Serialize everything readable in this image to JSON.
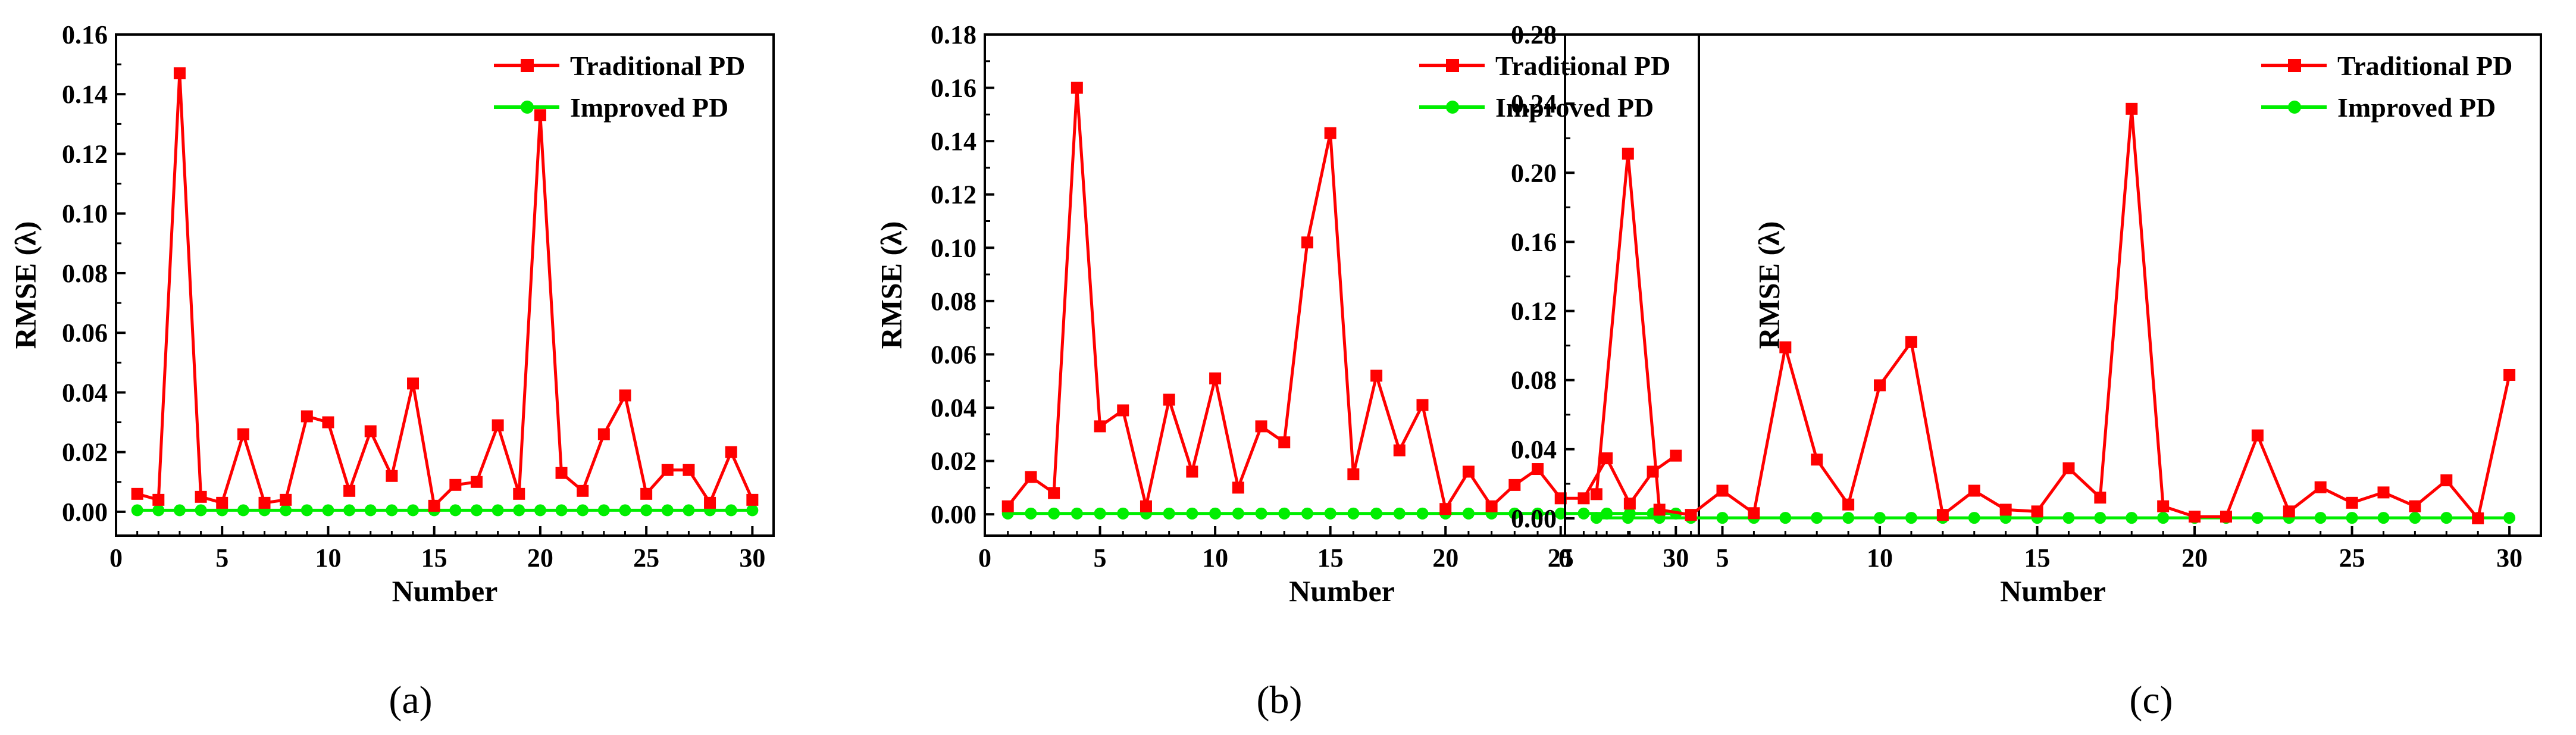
{
  "chart_data": [
    {
      "type": "line",
      "panel": "a",
      "caption": "(a)",
      "xlabel": "Number",
      "ylabel": "RMSE (λ)",
      "xlim": [
        0,
        31
      ],
      "ylim": [
        -0.008,
        0.16
      ],
      "xticks": [
        0,
        5,
        10,
        15,
        20,
        25,
        30
      ],
      "yticks": [
        0.0,
        0.02,
        0.04,
        0.06,
        0.08,
        0.1,
        0.12,
        0.14,
        0.16
      ],
      "ytick_labels": [
        "0.00",
        "0.02",
        "0.04",
        "0.06",
        "0.08",
        "0.10",
        "0.12",
        "0.14",
        "0.16"
      ],
      "legend_position": "top-right",
      "x": [
        1,
        2,
        3,
        4,
        5,
        6,
        7,
        8,
        9,
        10,
        11,
        12,
        13,
        14,
        15,
        16,
        17,
        18,
        19,
        20,
        21,
        22,
        23,
        24,
        25,
        26,
        27,
        28,
        29,
        30
      ],
      "series": [
        {
          "name": "Traditional PD",
          "color": "#ff0000",
          "marker": "square",
          "values": [
            0.006,
            0.004,
            0.147,
            0.005,
            0.003,
            0.026,
            0.003,
            0.004,
            0.032,
            0.03,
            0.007,
            0.027,
            0.012,
            0.043,
            0.002,
            0.009,
            0.01,
            0.029,
            0.006,
            0.133,
            0.013,
            0.007,
            0.026,
            0.039,
            0.006,
            0.014,
            0.014,
            0.003,
            0.02,
            0.004
          ]
        },
        {
          "name": "Improved PD",
          "color": "#00ee00",
          "marker": "circle",
          "values": [
            0.0005,
            0.0005,
            0.0005,
            0.0005,
            0.0005,
            0.0005,
            0.0005,
            0.0005,
            0.0005,
            0.0005,
            0.0005,
            0.0005,
            0.0005,
            0.0005,
            0.0005,
            0.0005,
            0.0005,
            0.0005,
            0.0005,
            0.0005,
            0.0005,
            0.0005,
            0.0005,
            0.0005,
            0.0005,
            0.0005,
            0.0005,
            0.0005,
            0.0005,
            0.0005
          ]
        }
      ]
    },
    {
      "type": "line",
      "panel": "b",
      "caption": "(b)",
      "xlabel": "Number",
      "ylabel": "RMSE (λ)",
      "xlim": [
        0,
        31
      ],
      "ylim": [
        -0.008,
        0.18
      ],
      "xticks": [
        0,
        5,
        10,
        15,
        20,
        25,
        30
      ],
      "yticks": [
        0.0,
        0.02,
        0.04,
        0.06,
        0.08,
        0.1,
        0.12,
        0.14,
        0.16,
        0.18
      ],
      "ytick_labels": [
        "0.00",
        "0.02",
        "0.04",
        "0.06",
        "0.08",
        "0.10",
        "0.12",
        "0.14",
        "0.16",
        "0.18"
      ],
      "legend_position": "top-right",
      "x": [
        1,
        2,
        3,
        4,
        5,
        6,
        7,
        8,
        9,
        10,
        11,
        12,
        13,
        14,
        15,
        16,
        17,
        18,
        19,
        20,
        21,
        22,
        23,
        24,
        25,
        26,
        27,
        28,
        29,
        30
      ],
      "series": [
        {
          "name": "Traditional PD",
          "color": "#ff0000",
          "marker": "square",
          "values": [
            0.003,
            0.014,
            0.008,
            0.16,
            0.033,
            0.039,
            0.003,
            0.043,
            0.016,
            0.051,
            0.01,
            0.033,
            0.027,
            0.102,
            0.143,
            0.015,
            0.052,
            0.024,
            0.041,
            0.002,
            0.016,
            0.003,
            0.011,
            0.017,
            0.006,
            0.006,
            0.021,
            0.004,
            0.016,
            0.022
          ]
        },
        {
          "name": "Improved PD",
          "color": "#00ee00",
          "marker": "circle",
          "values": [
            0.0003,
            0.0003,
            0.0003,
            0.0003,
            0.0003,
            0.0003,
            0.0003,
            0.0003,
            0.0003,
            0.0003,
            0.0003,
            0.0003,
            0.0003,
            0.0003,
            0.0003,
            0.0003,
            0.0003,
            0.0003,
            0.0003,
            0.0003,
            0.0003,
            0.0003,
            0.0003,
            0.0003,
            0.0003,
            0.0003,
            0.0003,
            0.0003,
            0.0003,
            0.0003
          ]
        }
      ]
    },
    {
      "type": "line",
      "panel": "c",
      "caption": "(c)",
      "xlabel": "Number",
      "ylabel": "RMSE (λ)",
      "xlim": [
        0,
        31
      ],
      "ylim": [
        -0.01,
        0.28
      ],
      "xticks": [
        0,
        5,
        10,
        15,
        20,
        25,
        30
      ],
      "yticks": [
        0.0,
        0.04,
        0.08,
        0.12,
        0.16,
        0.2,
        0.24,
        0.28
      ],
      "ytick_labels": [
        "0.00",
        "0.04",
        "0.08",
        "0.12",
        "0.16",
        "0.20",
        "0.24",
        "0.28"
      ],
      "legend_position": "top-right",
      "x": [
        1,
        2,
        3,
        4,
        5,
        6,
        7,
        8,
        9,
        10,
        11,
        12,
        13,
        14,
        15,
        16,
        17,
        18,
        19,
        20,
        21,
        22,
        23,
        24,
        25,
        26,
        27,
        28,
        29,
        30
      ],
      "series": [
        {
          "name": "Traditional PD",
          "color": "#ff0000",
          "marker": "square",
          "values": [
            0.014,
            0.211,
            0.005,
            0.002,
            0.016,
            0.003,
            0.099,
            0.034,
            0.008,
            0.077,
            0.102,
            0.002,
            0.016,
            0.005,
            0.004,
            0.029,
            0.012,
            0.237,
            0.007,
            0.001,
            0.001,
            0.048,
            0.004,
            0.018,
            0.009,
            0.015,
            0.007,
            0.022,
            0.0,
            0.083
          ]
        },
        {
          "name": "Improved PD",
          "color": "#00ee00",
          "marker": "circle",
          "values": [
            0.0003,
            0.0003,
            0.0003,
            0.0003,
            0.0003,
            0.0003,
            0.0003,
            0.0003,
            0.0003,
            0.0003,
            0.0003,
            0.0003,
            0.0003,
            0.0003,
            0.0003,
            0.0003,
            0.0003,
            0.0003,
            0.0003,
            0.0003,
            0.0003,
            0.0003,
            0.0003,
            0.0003,
            0.0003,
            0.0003,
            0.0003,
            0.0003,
            0.0003,
            0.0003
          ]
        }
      ]
    }
  ]
}
